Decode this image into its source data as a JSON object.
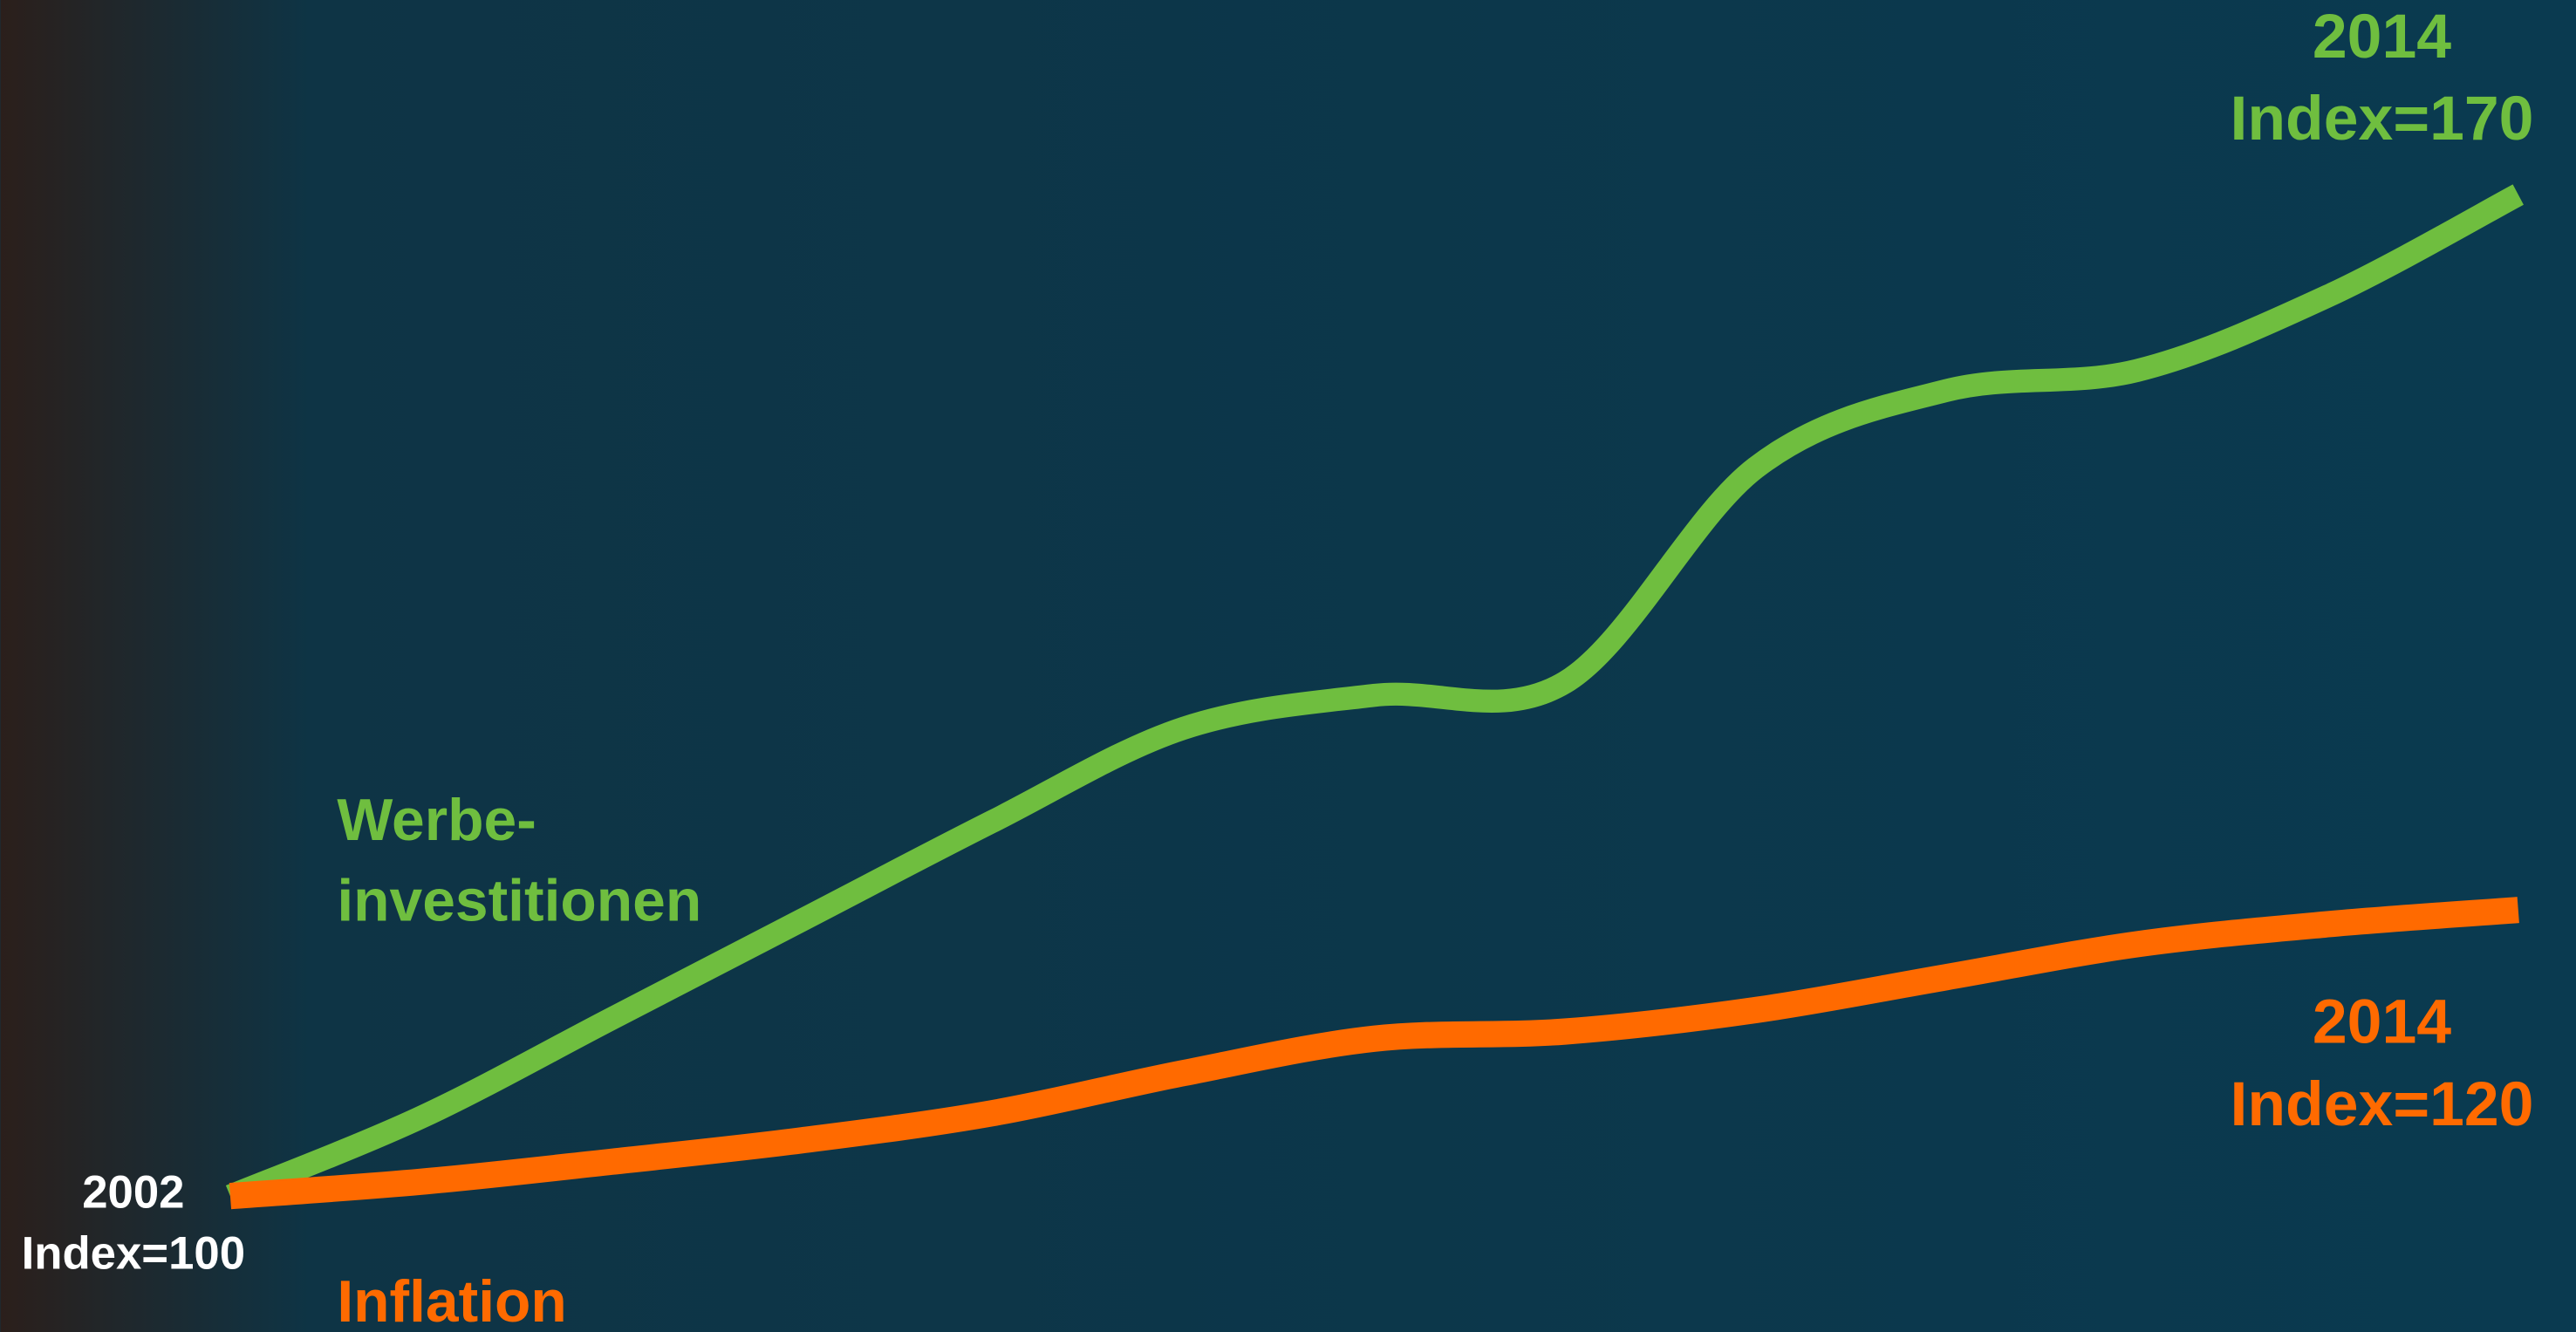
{
  "chart_data": {
    "type": "line",
    "categories": [
      "2002",
      null,
      null,
      null,
      null,
      null,
      null,
      null,
      null,
      null,
      null,
      null,
      "2014"
    ],
    "series": [
      {
        "name": "Werbe-\ninvestitionen",
        "color": "#6fbe3f",
        "values": [
          100,
          105.5,
          112.4,
          119.3,
          126.2,
          132.7,
          135,
          135.9,
          150.9,
          156.3,
          157.7,
          162.9,
          170
        ]
      },
      {
        "name": "Inflation",
        "color": "#ff6a00",
        "values": [
          100,
          101,
          102.4,
          103.9,
          105.8,
          108.6,
          111,
          111.5,
          113,
          115.3,
          117.6,
          119,
          120
        ]
      }
    ],
    "annotations": [
      "Index=100",
      "Index=170",
      "Index=120"
    ],
    "ylim": [
      90.5,
      183.6
    ]
  }
}
